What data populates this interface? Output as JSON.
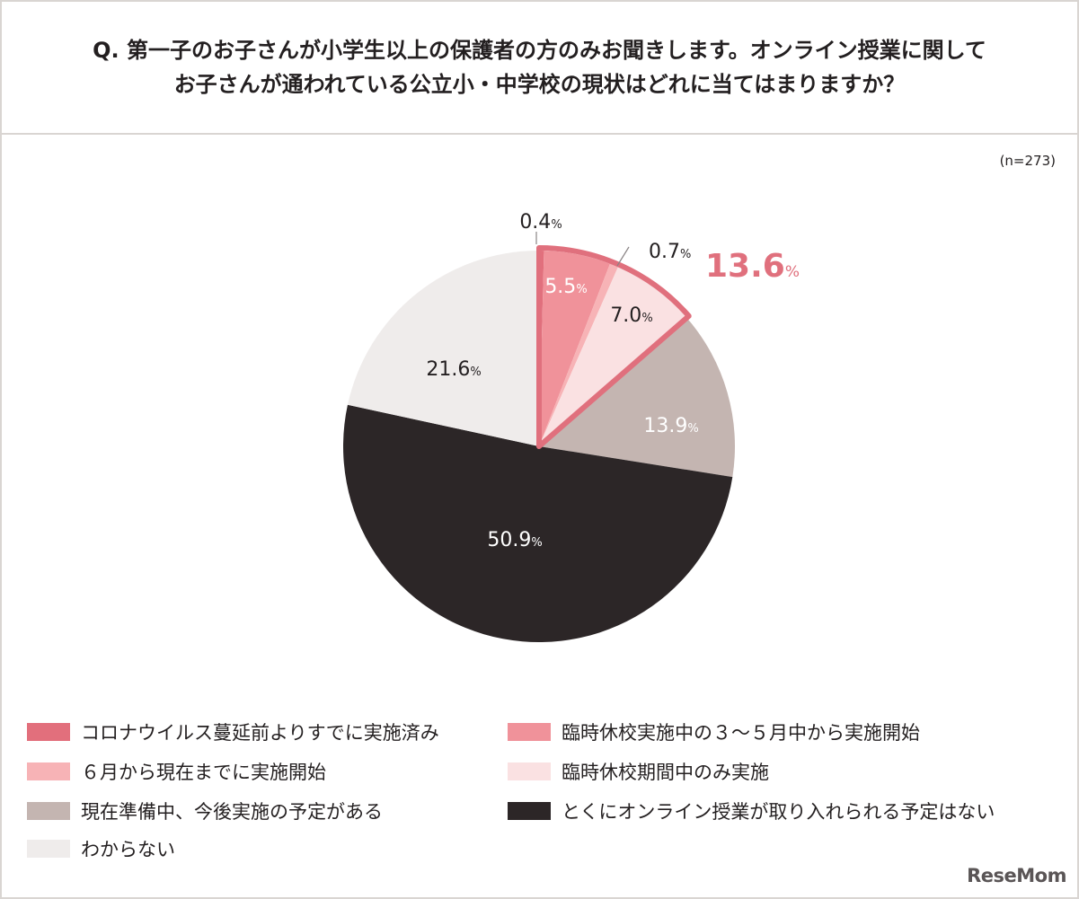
{
  "header": {
    "title_line1": "Q. 第一子のお子さんが小学生以上の保護者の方のみお聞きします。オンライン授業に関して",
    "title_line2": "お子さんが通われている公立小・中学校の現状はどれに当てはまりますか？"
  },
  "sample_size": "(n=273)",
  "percent_unit": "%",
  "highlight": {
    "value": "13.6",
    "color": "#e0707d"
  },
  "logo": "ReseMom",
  "chart_data": {
    "type": "pie",
    "title": "Q. 第一子のお子さんが小学生以上の保護者の方のみお聞きします。オンライン授業に関して お子さんが通われている公立小・中学校の現状はどれに当てはまりますか？",
    "start_angle_deg": 0,
    "direction": "clockwise",
    "legend_placement": "bottom",
    "slices": [
      {
        "label": "コロナウイルス蔓延前よりすでに実施済み",
        "value": 0.4,
        "color": "#e26f7c"
      },
      {
        "label": "臨時休校実施中の３～５月中から実施開始",
        "value": 5.5,
        "color": "#f0929a"
      },
      {
        "label": "６月から現在までに実施開始",
        "value": 0.7,
        "color": "#f7b3b6"
      },
      {
        "label": "臨時休校期間中のみ実施",
        "value": 7.0,
        "color": "#fae1e2"
      },
      {
        "label": "現在準備中、今後実施の予定がある",
        "value": 13.9,
        "color": "#c4b5b1"
      },
      {
        "label": "とくにオンライン授業が取り入れられる予定はない",
        "value": 50.9,
        "color": "#2c2627"
      },
      {
        "label": "わからない",
        "value": 21.6,
        "color": "#efeceb"
      }
    ]
  }
}
